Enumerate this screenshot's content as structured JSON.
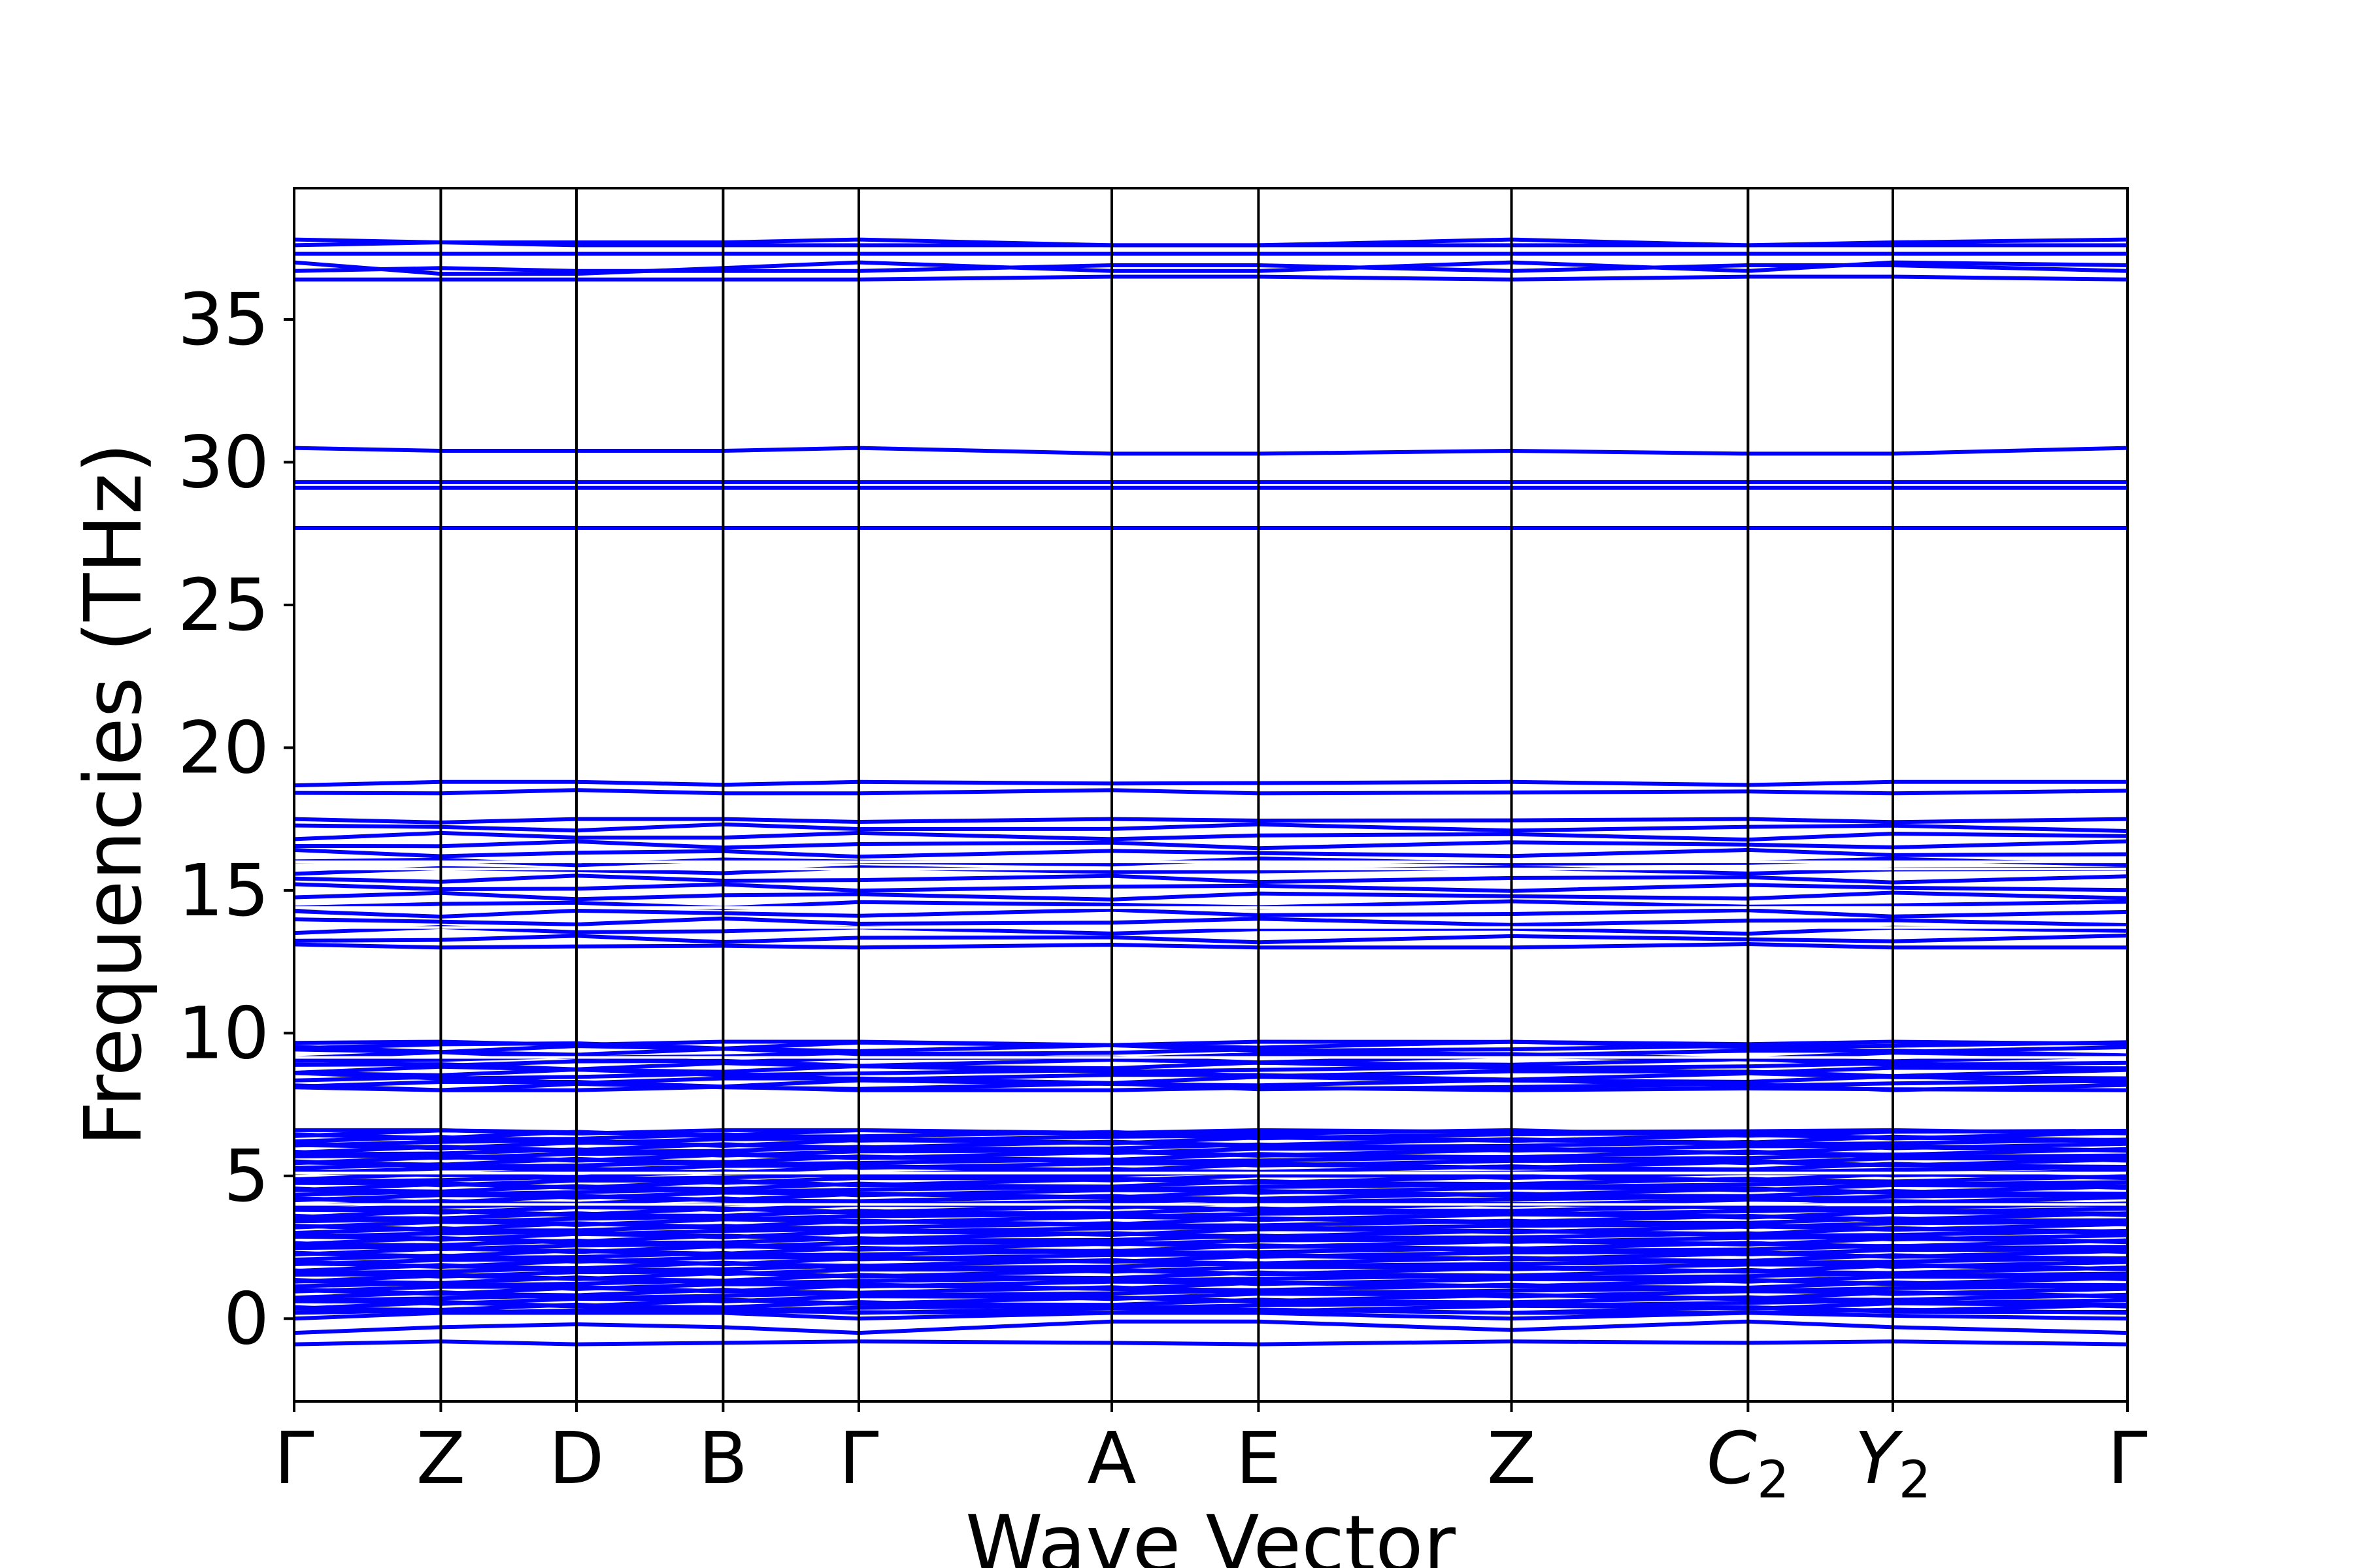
{
  "chart_data": {
    "type": "line",
    "title": "",
    "xlabel": "Wave Vector",
    "ylabel": "Frequencies (THz)",
    "ylim": [
      -2.9,
      39.6
    ],
    "yticks": [
      0,
      5,
      10,
      15,
      20,
      25,
      30,
      35
    ],
    "grid": false,
    "legend": "none",
    "line_color": "#0000ff",
    "frame_color": "#000000",
    "high_symmetry_points": [
      {
        "label": "Γ",
        "position": 0.0,
        "italic": false,
        "sub": ""
      },
      {
        "label": "Z",
        "position": 0.08,
        "italic": false,
        "sub": ""
      },
      {
        "label": "D",
        "position": 0.154,
        "italic": false,
        "sub": ""
      },
      {
        "label": "B",
        "position": 0.234,
        "italic": false,
        "sub": ""
      },
      {
        "label": "Γ",
        "position": 0.308,
        "italic": false,
        "sub": ""
      },
      {
        "label": "A",
        "position": 0.446,
        "italic": false,
        "sub": ""
      },
      {
        "label": "E",
        "position": 0.526,
        "italic": false,
        "sub": ""
      },
      {
        "label": "Z",
        "position": 0.664,
        "italic": false,
        "sub": ""
      },
      {
        "label": "C",
        "position": 0.793,
        "italic": true,
        "sub": "2"
      },
      {
        "label": "Y",
        "position": 0.872,
        "italic": true,
        "sub": "2"
      },
      {
        "label": "Γ",
        "position": 1.0,
        "italic": false,
        "sub": ""
      }
    ],
    "series_description": "phonon dispersion bands",
    "bands": [
      {
        "name": "",
        "values": [
          -0.9,
          -0.8,
          -0.9,
          -0.85,
          -0.8,
          -0.85,
          -0.9,
          -0.8,
          -0.85,
          -0.8,
          -0.9
        ]
      },
      {
        "name": "",
        "values": [
          -0.5,
          -0.3,
          -0.2,
          -0.3,
          -0.5,
          -0.1,
          -0.1,
          -0.4,
          -0.1,
          -0.3,
          -0.5
        ]
      },
      {
        "name": "",
        "values": [
          0.0,
          0.2,
          0.2,
          0.2,
          0.0,
          0.2,
          0.2,
          0.0,
          0.2,
          0.1,
          0.0
        ]
      },
      {
        "name": "",
        "values": [
          27.7,
          27.7,
          27.7,
          27.7,
          27.7,
          27.7,
          27.7,
          27.7,
          27.7,
          27.7,
          27.7
        ]
      },
      {
        "name": "",
        "values": [
          29.1,
          29.1,
          29.1,
          29.1,
          29.1,
          29.1,
          29.1,
          29.1,
          29.1,
          29.1,
          29.1
        ]
      },
      {
        "name": "",
        "values": [
          29.3,
          29.3,
          29.3,
          29.3,
          29.3,
          29.3,
          29.3,
          29.3,
          29.3,
          29.3,
          29.3
        ]
      },
      {
        "name": "",
        "values": [
          30.5,
          30.4,
          30.4,
          30.4,
          30.5,
          30.3,
          30.3,
          30.4,
          30.3,
          30.3,
          30.5
        ]
      },
      {
        "name": "",
        "values": [
          36.4,
          36.4,
          36.4,
          36.4,
          36.4,
          36.5,
          36.5,
          36.4,
          36.5,
          36.5,
          36.4
        ]
      },
      {
        "name": "",
        "values": [
          36.7,
          36.8,
          36.7,
          36.7,
          36.7,
          36.9,
          36.9,
          36.7,
          36.9,
          36.9,
          36.7
        ]
      },
      {
        "name": "",
        "values": [
          37.0,
          36.6,
          36.6,
          36.8,
          37.0,
          36.7,
          36.7,
          37.0,
          36.7,
          37.0,
          36.9
        ]
      },
      {
        "name": "",
        "values": [
          37.3,
          37.3,
          37.3,
          37.3,
          37.3,
          37.3,
          37.3,
          37.3,
          37.3,
          37.3,
          37.3
        ]
      },
      {
        "name": "",
        "values": [
          37.6,
          37.7,
          37.6,
          37.6,
          37.6,
          37.6,
          37.6,
          37.6,
          37.6,
          37.6,
          37.6
        ]
      },
      {
        "name": "",
        "values": [
          37.8,
          37.7,
          37.7,
          37.7,
          37.8,
          37.6,
          37.6,
          37.8,
          37.6,
          37.7,
          37.8
        ]
      }
    ],
    "band_groups": [
      {
        "ymin": 0.2,
        "ymax": 6.6,
        "count": 75
      },
      {
        "ymin": 8.0,
        "ymax": 9.7,
        "count": 15
      },
      {
        "ymin": 13.0,
        "ymax": 17.5,
        "count": 16
      },
      {
        "ymin": 18.4,
        "ymax": 18.8,
        "count": 2
      }
    ],
    "band_gaps_white": [
      4.0,
      5.1,
      9.15,
      13.7,
      14.4,
      15.75,
      16.0
    ]
  }
}
